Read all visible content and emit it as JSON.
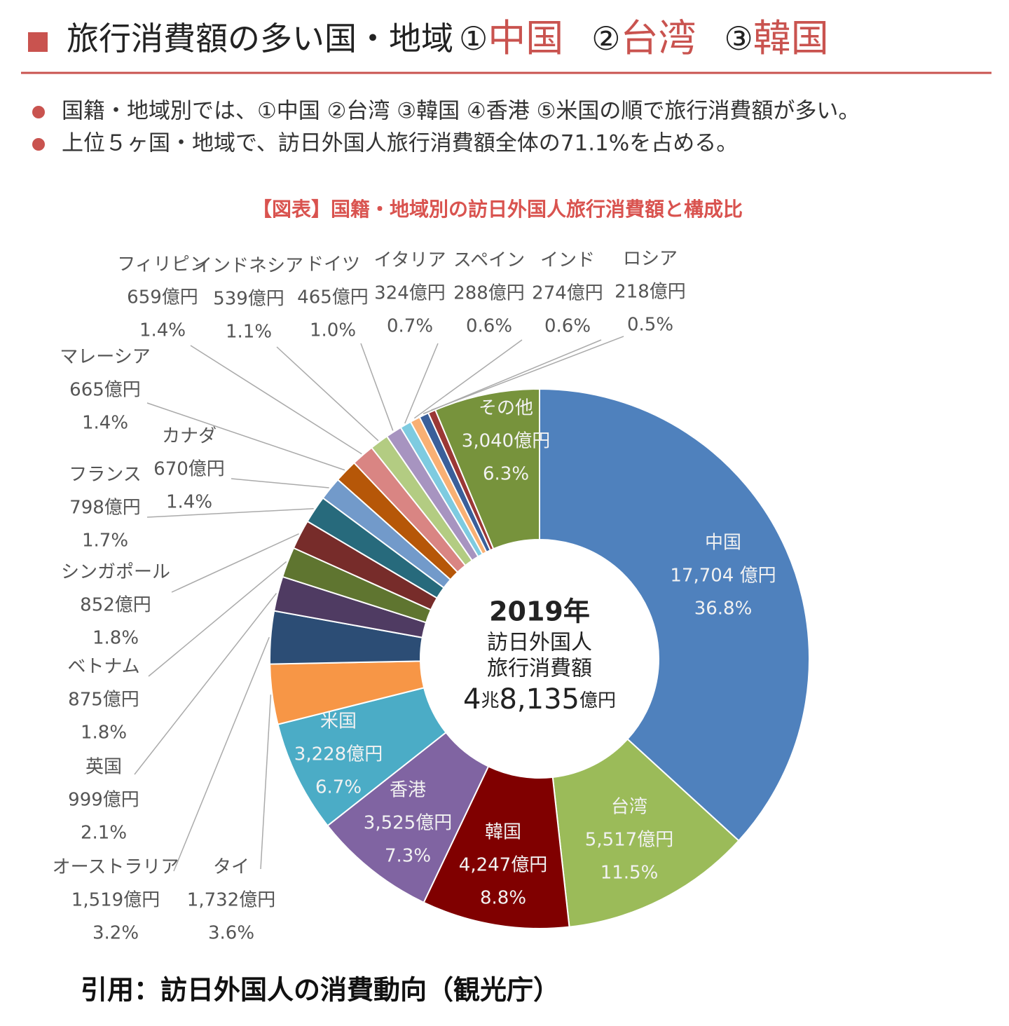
{
  "header": {
    "title": "旅行消費額の多い国・地域",
    "ranks": [
      {
        "mark": "①",
        "name": "中国"
      },
      {
        "mark": "②",
        "name": "台湾"
      },
      {
        "mark": "③",
        "name": "韓国"
      }
    ]
  },
  "bullets": [
    "国籍・地域別では、①中国 ②台湾 ③韓国 ④香港 ⑤米国の順で旅行消費額が多い。",
    "上位５ヶ国・地域で、訪日外国人旅行消費額全体の71.1%を占める。"
  ],
  "chart_data": {
    "type": "donut",
    "title": "【図表】国籍・地域別の訪日外国人旅行消費額と構成比",
    "categories": [
      "中国",
      "台湾",
      "韓国",
      "香港",
      "米国",
      "タイ",
      "オーストラリア",
      "英国",
      "ベトナム",
      "シンガポール",
      "フランス",
      "カナダ",
      "マレーシア",
      "フィリピン",
      "インドネシア",
      "ドイツ",
      "イタリア",
      "スペイン",
      "インド",
      "ロシア",
      "その他"
    ],
    "values": [
      17704,
      5517,
      4247,
      3525,
      3228,
      1732,
      1519,
      999,
      875,
      852,
      798,
      670,
      665,
      659,
      539,
      465,
      324,
      288,
      274,
      218,
      3040
    ],
    "value_labels": [
      "17,704 億円",
      "5,517億円",
      "4,247億円",
      "3,525億円",
      "3,228億円",
      "1,732億円",
      "1,519億円",
      "999億円",
      "875億円",
      "852億円",
      "798億円",
      "670億円",
      "665億円",
      "659億円",
      "539億円",
      "465億円",
      "324億円",
      "288億円",
      "274億円",
      "218億円",
      "3,040億円"
    ],
    "shares": [
      36.8,
      11.5,
      8.8,
      7.3,
      6.7,
      3.6,
      3.2,
      2.1,
      1.8,
      1.8,
      1.7,
      1.4,
      1.4,
      1.4,
      1.1,
      1,
      0.7,
      0.6,
      0.6,
      0.5,
      6.3
    ],
    "share_labels": [
      "36.8%",
      "11.5%",
      "8.8%",
      "7.3%",
      "6.7%",
      "3.6%",
      "3.2%",
      "2.1%",
      "1.8%",
      "1.8%",
      "1.7%",
      "1.4%",
      "1.4%",
      "1.4%",
      "1.1%",
      "1.0%",
      "0.7%",
      "0.6%",
      "0.6%",
      "0.5%",
      "6.3%"
    ],
    "colors": [
      "#4f81bd",
      "#9bbb59",
      "#800000",
      "#8064a2",
      "#4bacc6",
      "#f79646",
      "#2c4d75",
      "#4f3b62",
      "#5f7530",
      "#772c2a",
      "#276a7c",
      "#729aca",
      "#b65708",
      "#d98583",
      "#b3cc82",
      "#a794c0",
      "#7ecbe0",
      "#f9b074",
      "#3a5f9a",
      "#9b3836",
      "#77933c"
    ],
    "center": {
      "year": "2019年",
      "line1": "訪日外国人",
      "line2": "旅行消費額",
      "total_trillion": "4",
      "trillion_unit": "兆",
      "total_rest": "8,135",
      "rest_unit": "億円"
    }
  },
  "citation": "引用：訪日外国人の消費動向（観光庁）"
}
